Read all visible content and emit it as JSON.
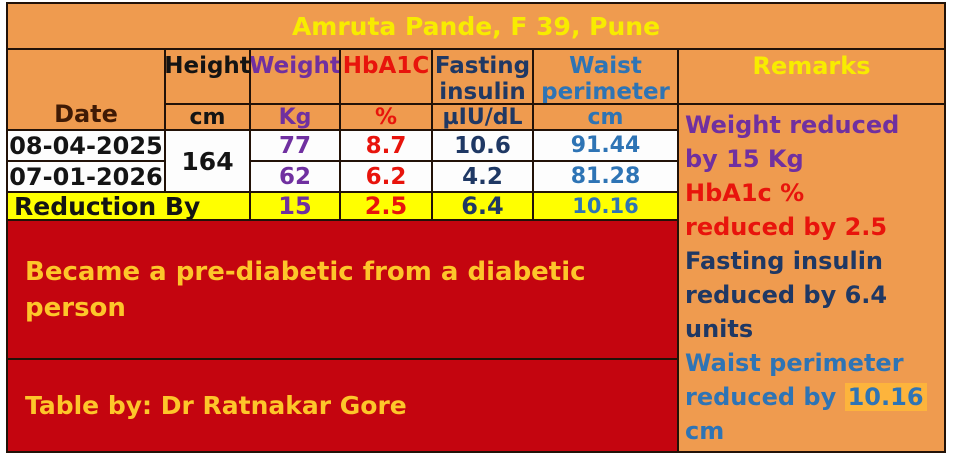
{
  "patient": {
    "title": "Amruta Pande, F 39, Pune"
  },
  "table": {
    "headers": {
      "date": "Date",
      "height": "Height",
      "weight": "Weight",
      "hba1c": "HbA1C",
      "fasting_insulin": "Fasting insulin",
      "waist_perimeter": "Waist perimeter",
      "remarks": "Remarks"
    },
    "units": {
      "height": "cm",
      "weight": "Kg",
      "hba1c": "%",
      "fasting_insulin": "µIU/dL",
      "waist_perimeter": "cm"
    },
    "height_value": "164",
    "rows": [
      {
        "date": "08-04-2025",
        "weight": "77",
        "hba1c": "8.7",
        "fasting_insulin": "10.6",
        "waist_perimeter": "91.44"
      },
      {
        "date": "07-01-2026",
        "weight": "62",
        "hba1c": "6.2",
        "fasting_insulin": "4.2",
        "waist_perimeter": "81.28"
      }
    ],
    "reduction": {
      "label": "Reduction By",
      "weight": "15",
      "hba1c": "2.5",
      "fasting_insulin": "6.4",
      "waist_perimeter": "10.16"
    }
  },
  "remarks": {
    "items": [
      {
        "metric": "weight",
        "text": "Weight reduced by 15 Kg",
        "lines": [
          "Weight reduced",
          "by 15 Kg"
        ],
        "color": "#7030a0"
      },
      {
        "metric": "hba1c",
        "text": "HbA1c % reduced by 2.5",
        "lines": [
          "HbA1c %",
          "reduced by 2.5"
        ],
        "color": "#e8140c"
      },
      {
        "metric": "fasting_insulin",
        "text": "Fasting insulin reduced by 6.4 units",
        "lines": [
          "Fasting insulin",
          "reduced by 6.4",
          "units"
        ],
        "color": "#1f3864"
      },
      {
        "metric": "waist_perimeter",
        "text": "Waist perimeter reduced by 10.16 cm",
        "lines": [
          "Waist perimeter",
          "reduced by"
        ],
        "highlighted_value": "10.16",
        "last_line": "cm",
        "color": "#2e74b5"
      }
    ]
  },
  "footer": {
    "note": "Became a pre-diabetic from a diabetic person",
    "credit": "Table by: Dr Ratnakar Gore"
  },
  "colors": {
    "slide_background": "#ef9b4f",
    "title_text": "#f8ec00",
    "remarks_header_text": "#f8ec00",
    "date_header_text": "#3f1a05",
    "weight_color": "#7030a0",
    "hba1c_color": "#e8140c",
    "fasting_insulin_color": "#1f3864",
    "waist_color": "#2e74b5",
    "reduction_row_background": "#ffff00",
    "banner_background": "#c4050f",
    "banner_text": "#fdc62a",
    "highlight_background": "#fdb43c",
    "border_color": "#221208",
    "data_cell_background": "#fdfdfd"
  }
}
